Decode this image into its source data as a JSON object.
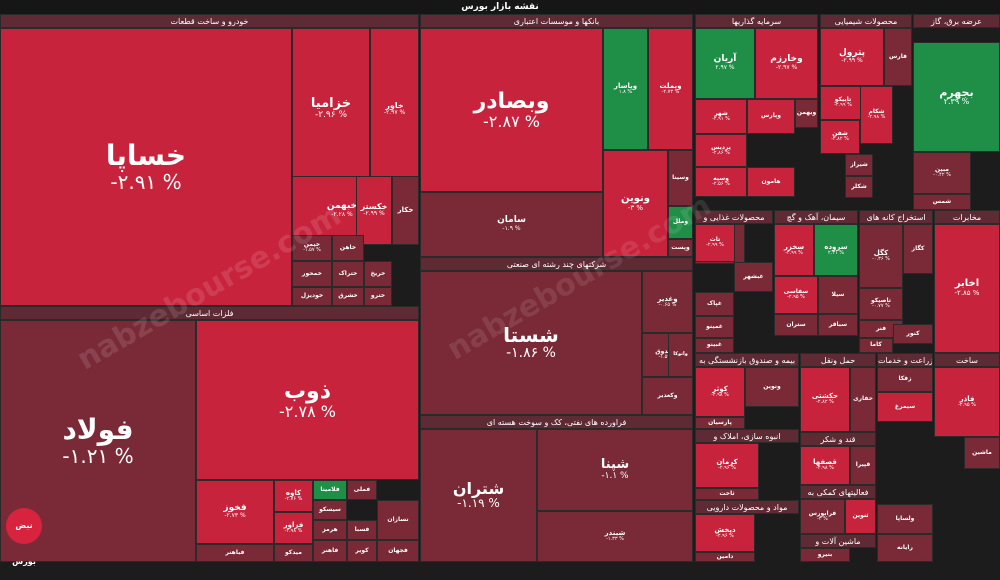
{
  "header": {
    "title": "نقشه بازار بورس"
  },
  "watermark": "nabzebourse.com",
  "logo": "نبض بورس",
  "colors": {
    "down": "#c8233c",
    "deep_down": "#7a2a36",
    "up": "#1f8f48",
    "neutral": "#7a3a44"
  },
  "chart_data": {
    "type": "treemap",
    "sectors": [
      "خودرو و ساخت قطعات",
      "فلزات اساسی",
      "بانکها و موسسات اعتباری",
      "شرکتهای چند رشته ای صنعتی",
      "فراورده های نفتی، کک و سوخت هسته ای",
      "سرمایه گذاریها",
      "محصولات شیمیایی",
      "عرضه برق، گاز",
      "محصولات غذایی و",
      "سیمان، آهک و گچ",
      "استخراج کانه های",
      "مخابرات",
      "بیمه و صندوق بازنشستگی به",
      "حمل ونقل",
      "زراعت و خدمات",
      "ساخت",
      "انبوه سازی، املاک و",
      "قند و شکر",
      "فعالیتهای کمکی به",
      "مواد و محصولات دارویی",
      "ماشین آلات و"
    ],
    "tiles": [
      {
        "symbol": "خساپا",
        "change": "-۲.۹۱ %"
      },
      {
        "symbol": "خزامیا",
        "change": "-۲.۹۶ %"
      },
      {
        "symbol": "خاور",
        "change": "-۲.۹۷ %"
      },
      {
        "symbol": "خبهمن",
        "change": "-۲.۲۸ %"
      },
      {
        "symbol": "خکستر",
        "change": "-۲.۹۹ %"
      },
      {
        "symbol": "خکار",
        "change": ""
      },
      {
        "symbol": "خیمن",
        "change": "-۱.۵۷ %"
      },
      {
        "symbol": "خاهن",
        "change": ""
      },
      {
        "symbol": "خمحور",
        "change": ""
      },
      {
        "symbol": "خودیزل",
        "change": ""
      },
      {
        "symbol": "ختراک",
        "change": ""
      },
      {
        "symbol": "خریخ",
        "change": ""
      },
      {
        "symbol": "خترو",
        "change": ""
      },
      {
        "symbol": "خشرق",
        "change": ""
      },
      {
        "symbol": "فولاد",
        "change": "-۱.۲۱ %"
      },
      {
        "symbol": "ذوب",
        "change": "-۲.۷۸ %"
      },
      {
        "symbol": "فخوز",
        "change": "-۲.۷۳ %"
      },
      {
        "symbol": "کاوه",
        "change": "-۲.۷۶ %"
      },
      {
        "symbol": "فزاور",
        "change": "-۲.۹۸ %"
      },
      {
        "symbol": "فلامینا",
        "change": ""
      },
      {
        "symbol": "سیسکو",
        "change": ""
      },
      {
        "symbol": "فملی",
        "change": ""
      },
      {
        "symbol": "هرمز",
        "change": ""
      },
      {
        "symbol": "فاهنر",
        "change": ""
      },
      {
        "symbol": "فسبا",
        "change": ""
      },
      {
        "symbol": "کویر",
        "change": ""
      },
      {
        "symbol": "فجهان",
        "change": ""
      },
      {
        "symbol": "میدکو",
        "change": ""
      },
      {
        "symbol": "فباهنر",
        "change": ""
      },
      {
        "symbol": "نسازان",
        "change": ""
      },
      {
        "symbol": "وبصادر",
        "change": "-۲.۸۷ %"
      },
      {
        "symbol": "وبملت",
        "change": "-۲.۷۳ %"
      },
      {
        "symbol": "وپاسار",
        "change": "۱.۸ %"
      },
      {
        "symbol": "ونوین",
        "change": "-۳ %"
      },
      {
        "symbol": "سامان",
        "change": "-۱.۹ %"
      },
      {
        "symbol": "وملل",
        "change": ""
      },
      {
        "symbol": "وسینا",
        "change": ""
      },
      {
        "symbol": "وپست",
        "change": ""
      },
      {
        "symbol": "شستا",
        "change": "-۱.۸۶ %"
      },
      {
        "symbol": "وغدیر",
        "change": "-۰.۶۵ %"
      },
      {
        "symbol": "وصندوق",
        "change": "-۱.۵۹ %"
      },
      {
        "symbol": "وکغدیر",
        "change": ""
      },
      {
        "symbol": "واتوکا",
        "change": ""
      },
      {
        "symbol": "شتران",
        "change": "-۱.۱۹ %"
      },
      {
        "symbol": "شپنا",
        "change": "-۱.۱ %"
      },
      {
        "symbol": "شبندر",
        "change": "-۱.۳۳ %"
      },
      {
        "symbol": "آریان",
        "change": "۲.۹۷ %"
      },
      {
        "symbol": "وخارزم",
        "change": "-۲.۹۷ %"
      },
      {
        "symbol": "وبهمن",
        "change": ""
      },
      {
        "symbol": "وامید",
        "change": "-۲.۹۶ %"
      },
      {
        "symbol": "شهر",
        "change": "-۲.۹۱ %"
      },
      {
        "symbol": "وپارس",
        "change": ""
      },
      {
        "symbol": "پردیس",
        "change": "-۲.۸۶ %"
      },
      {
        "symbol": "وسپه",
        "change": "-۲.۵۶ %"
      },
      {
        "symbol": "هامون",
        "change": ""
      },
      {
        "symbol": "پترول",
        "change": "-۲.۹۹ %"
      },
      {
        "symbol": "فارس",
        "change": ""
      },
      {
        "symbol": "تاپیکو",
        "change": "-۲.۹۹ %"
      },
      {
        "symbol": "شکام",
        "change": "-۲.۹۸ %"
      },
      {
        "symbol": "شفن",
        "change": "-۲.۸۲ %"
      },
      {
        "symbol": "شیراز",
        "change": ""
      },
      {
        "symbol": "شکلر",
        "change": ""
      },
      {
        "symbol": "بجهرم",
        "change": "۲.۳۹ %"
      },
      {
        "symbol": "مبین",
        "change": "-۰.۴۲ %"
      },
      {
        "symbol": "شمس",
        "change": ""
      },
      {
        "symbol": "بهپاک",
        "change": ""
      },
      {
        "symbol": "تات",
        "change": "-۲.۹۹ %"
      },
      {
        "symbol": "غبشهر",
        "change": ""
      },
      {
        "symbol": "غپاک",
        "change": ""
      },
      {
        "symbol": "غمینو",
        "change": ""
      },
      {
        "symbol": "غبینو",
        "change": ""
      },
      {
        "symbol": "سخزر",
        "change": "-۲.۹۹ %"
      },
      {
        "symbol": "سروده",
        "change": "۲.۳۱ %"
      },
      {
        "symbol": "سفاسی",
        "change": "-۲.۹۵ %"
      },
      {
        "symbol": "ستران",
        "change": ""
      },
      {
        "symbol": "سباقر",
        "change": ""
      },
      {
        "symbol": "سیلا",
        "change": ""
      },
      {
        "symbol": "کگل",
        "change": "-۰.۳۶ %"
      },
      {
        "symbol": "تاصیکو",
        "change": "-۰.۷۷ %"
      },
      {
        "symbol": "کگاز",
        "change": ""
      },
      {
        "symbol": "فنر",
        "change": ""
      },
      {
        "symbol": "کنور",
        "change": ""
      },
      {
        "symbol": "کاما",
        "change": ""
      },
      {
        "symbol": "اخابر",
        "change": "-۲.۸۵ %"
      },
      {
        "symbol": "کوثر",
        "change": "-۲.۹۸ %"
      },
      {
        "symbol": "ونوین",
        "change": ""
      },
      {
        "symbol": "پارسیان",
        "change": ""
      },
      {
        "symbol": "حکشتی",
        "change": "-۲.۸۲ %"
      },
      {
        "symbol": "حفاری",
        "change": ""
      },
      {
        "symbol": "زفکا",
        "change": ""
      },
      {
        "symbol": "سیمرغ",
        "change": ""
      },
      {
        "symbol": "فاذر",
        "change": "-۲.۹۵ %"
      },
      {
        "symbol": "ماشین",
        "change": ""
      },
      {
        "symbol": "کرمان",
        "change": "-۲.۹۶ %"
      },
      {
        "symbol": "ثاخت",
        "change": ""
      },
      {
        "symbol": "قصفها",
        "change": "-۲.۹۸ %"
      },
      {
        "symbol": "قپیرا",
        "change": ""
      },
      {
        "symbol": "فرابورس",
        "change": "-۳ %"
      },
      {
        "symbol": "ثنوین",
        "change": ""
      },
      {
        "symbol": "دپخش",
        "change": "-۲.۹۶ %"
      },
      {
        "symbol": "دامین",
        "change": ""
      },
      {
        "symbol": "ولساپا",
        "change": ""
      },
      {
        "symbol": "رایانه",
        "change": ""
      },
      {
        "symbol": "بنیرو",
        "change": ""
      }
    ]
  }
}
